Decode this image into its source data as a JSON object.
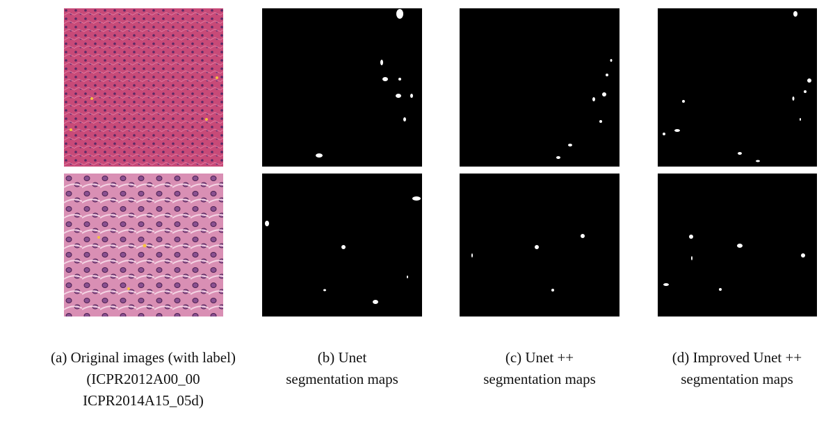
{
  "figure": {
    "columns": [
      {
        "caption_lines": [
          "(a) Original images (with label)",
          "(ICPR2012A00_00",
          "ICPR2014A15_05d)"
        ]
      },
      {
        "caption_lines": [
          "(b) Unet",
          "segmentation maps"
        ]
      },
      {
        "caption_lines": [
          "(c) Unet ++",
          "segmentation maps"
        ]
      },
      {
        "caption_lines": [
          "(d) Improved Unet ++",
          "segmentation maps"
        ]
      }
    ]
  }
}
